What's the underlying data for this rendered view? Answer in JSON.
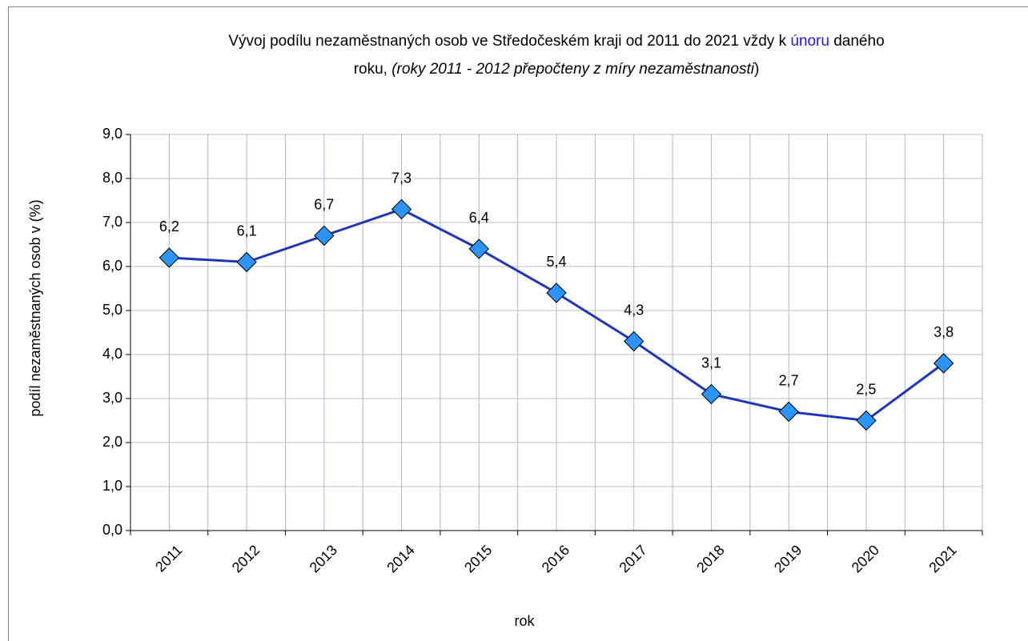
{
  "chart_data": {
    "type": "line",
    "title": [
      [
        "Vývoj podílu nezaměstnaných osob ve Středočeském kraji od 2011 do 2021 vždy k ",
        "únoru",
        " daného"
      ],
      [
        "roku, ",
        "(roky 2011 - 2012 přepočteny z míry nezaměstnanosti",
        ")"
      ]
    ],
    "x_label": "rok",
    "y_label": "podíl nezaměstnaných osob v (%)",
    "categories": [
      "2011",
      "2012",
      "2013",
      "2014",
      "2015",
      "2016",
      "2017",
      "2018",
      "2019",
      "2020",
      "2021"
    ],
    "series": [
      {
        "color": "#1f35b8",
        "marker_color": "#2b95f5",
        "values": [
          6.2,
          6.1,
          6.7,
          7.3,
          6.4,
          5.4,
          4.3,
          3.1,
          2.7,
          2.5,
          3.8
        ],
        "value_labels": [
          "6,2",
          "6,1",
          "6,7",
          "7,3",
          "6,4",
          "5,4",
          "4,3",
          "3,1",
          "2,7",
          "2,5",
          "3,8"
        ]
      }
    ],
    "ylim": [
      0,
      9
    ],
    "yticks": [
      {
        "value": 0,
        "label": "0,0"
      },
      {
        "value": 1,
        "label": "1,0"
      },
      {
        "value": 2,
        "label": "2,0"
      },
      {
        "value": 3,
        "label": "3,0"
      },
      {
        "value": 4,
        "label": "4,0"
      },
      {
        "value": 5,
        "label": "5,0"
      },
      {
        "value": 6,
        "label": "6,0"
      },
      {
        "value": 7,
        "label": "7,0"
      },
      {
        "value": 8,
        "label": "8,0"
      },
      {
        "value": 9,
        "label": "9,0"
      }
    ],
    "grid": true
  }
}
